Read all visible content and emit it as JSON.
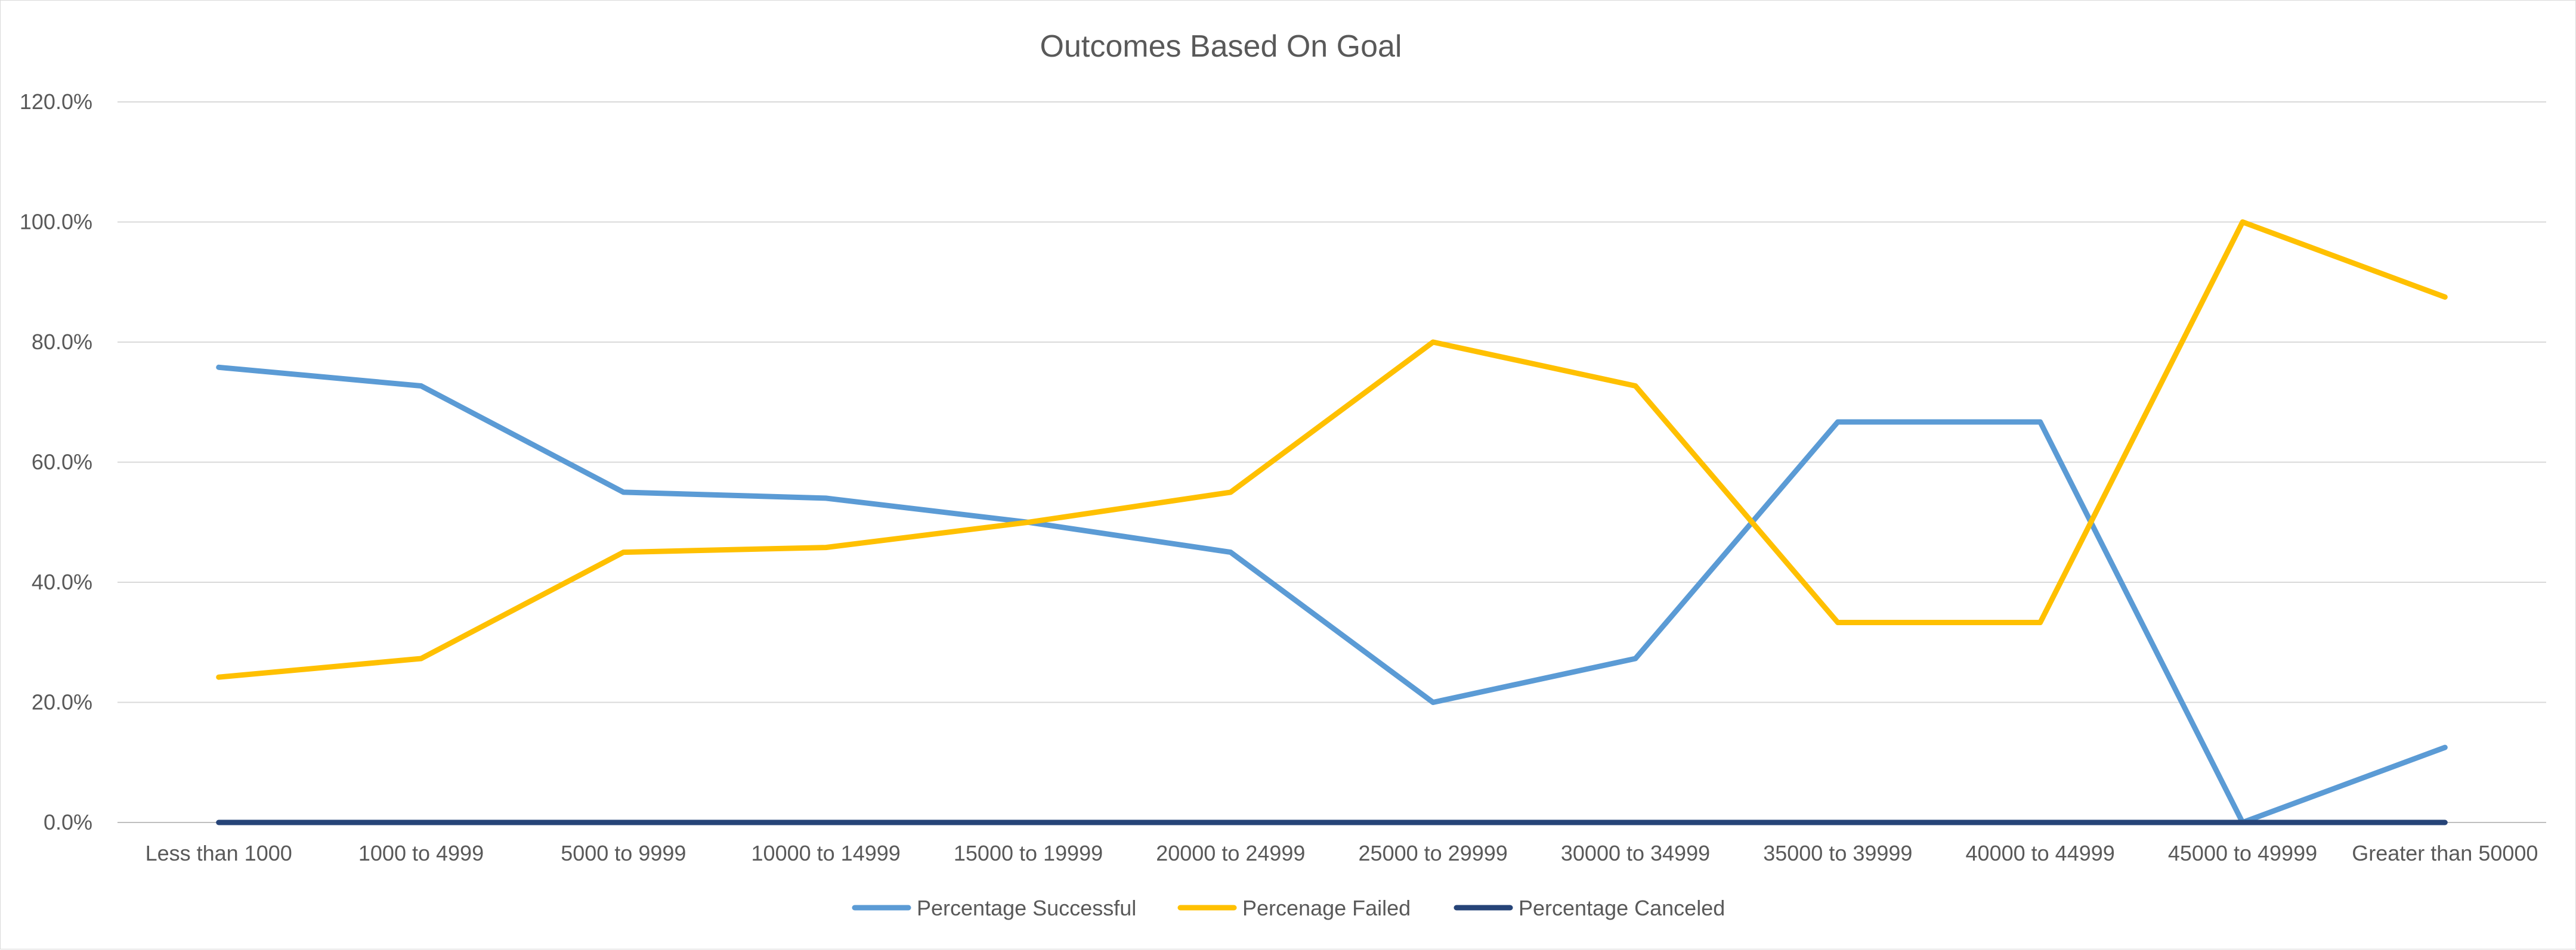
{
  "chart_data": {
    "type": "line",
    "title": "Outcomes Based On Goal",
    "xlabel": "",
    "ylabel": "",
    "categories": [
      "Less than 1000",
      "1000 to 4999",
      "5000 to 9999",
      "10000 to 14999",
      "15000 to 19999",
      "20000 to 24999",
      "25000 to 29999",
      "30000 to 34999",
      "35000 to 39999",
      "40000 to 44999",
      "45000 to 49999",
      "Greater than 50000"
    ],
    "y_ticks": [
      "0.0%",
      "20.0%",
      "40.0%",
      "60.0%",
      "80.0%",
      "100.0%",
      "120.0%"
    ],
    "ylim": [
      0,
      120
    ],
    "grid": true,
    "legend_position": "bottom",
    "series": [
      {
        "name": "Percentage Successful",
        "color": "#5b9bd5",
        "values": [
          75.8,
          72.7,
          55.0,
          54.0,
          50.0,
          45.0,
          20.0,
          27.3,
          66.7,
          66.7,
          0.0,
          12.5
        ]
      },
      {
        "name": "Percenage Failed",
        "color": "#ffc000",
        "values": [
          24.2,
          27.3,
          45.0,
          45.8,
          50.0,
          55.0,
          80.0,
          72.7,
          33.3,
          33.3,
          100.0,
          87.5
        ]
      },
      {
        "name": "Percentage Canceled",
        "color": "#264478",
        "values": [
          0,
          0,
          0,
          0,
          0,
          0,
          0,
          0,
          0,
          0,
          0,
          0
        ]
      }
    ]
  }
}
